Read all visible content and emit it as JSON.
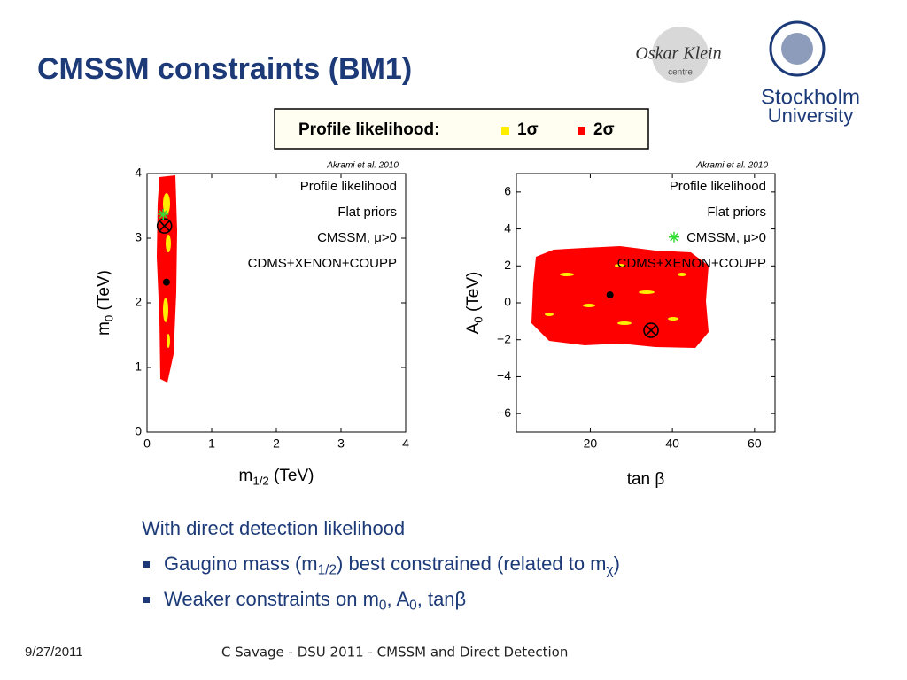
{
  "header": {
    "title": "CMSSM constraints (BM1)",
    "okc_logo": [
      "Oskar Klein",
      "centre"
    ],
    "su_logo": [
      "Stockholm",
      "University"
    ]
  },
  "legend_box": {
    "label": "Profile likelihood:",
    "items": [
      "1σ",
      "2σ"
    ],
    "colors": [
      "#ffee00",
      "#ff0000"
    ]
  },
  "chart_data": [
    {
      "type": "scatter",
      "credit": "Akrami et al. 2010",
      "annotations": [
        "Profile likelihood",
        "Flat priors",
        "CMSSM, μ>0",
        "CDMS+XENON+COUPP"
      ],
      "x_label": [
        "m",
        "1/2",
        " (TeV)"
      ],
      "y_label": [
        "m",
        "0",
        " (TeV)"
      ],
      "xlim": [
        0,
        4
      ],
      "ylim": [
        0,
        4
      ],
      "xticks": [
        0,
        1,
        2,
        3,
        4
      ],
      "yticks": [
        0,
        1,
        2,
        3,
        4
      ],
      "x": [
        0.3,
        0.27,
        0.25
      ],
      "y": [
        2.32,
        3.19,
        3.37
      ],
      "markers": [
        "dot",
        "otimes",
        "star"
      ],
      "marker_colors": [
        "#000000",
        "#000000",
        "#33dd33"
      ]
    },
    {
      "type": "scatter",
      "credit": "Akrami et al. 2010",
      "annotations": [
        "Profile likelihood",
        "Flat priors",
        "CMSSM, μ>0",
        "CDMS+XENON+COUPP"
      ],
      "x_label": [
        "tan β"
      ],
      "y_label": [
        "A",
        "0",
        " (TeV)"
      ],
      "xlim": [
        2,
        65
      ],
      "ylim": [
        -7,
        7
      ],
      "xticks": [
        20,
        40,
        60
      ],
      "yticks": [
        {
          "value": -6,
          "label": "−6"
        },
        {
          "value": -4,
          "label": "−4"
        },
        {
          "value": -2,
          "label": "−2"
        },
        0,
        2,
        4,
        6
      ],
      "x": [
        24.8,
        34.8,
        40.4
      ],
      "y": [
        0.43,
        -1.49,
        3.56
      ],
      "markers": [
        "dot",
        "otimes",
        "star"
      ],
      "marker_colors": [
        "#000000",
        "#000000",
        "#33dd33"
      ]
    }
  ],
  "bullets": {
    "intro": "With direct detection likelihood",
    "items": [
      [
        "Gaugino mass (m",
        "1/2",
        ") best constrained (related to m",
        "χ",
        ")"
      ],
      [
        "Weaker constraints on m",
        "0",
        ", A",
        "0",
        ", tanβ"
      ]
    ]
  },
  "footer": {
    "date": "9/27/2011",
    "text": "C Savage - DSU 2011 - CMSSM and Direct Detection"
  }
}
